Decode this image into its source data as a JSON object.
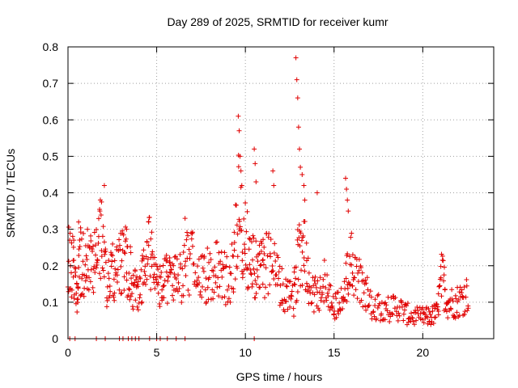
{
  "chart_data": {
    "type": "scatter",
    "title": "Day 289 of 2025, SRMTID for receiver kumr",
    "xlabel": "GPS time / hours",
    "ylabel": "SRMTID / TECUs",
    "xlim": [
      0,
      24
    ],
    "ylim": [
      0,
      0.8
    ],
    "x_ticks": [
      "0",
      "5",
      "10",
      "15",
      "20"
    ],
    "x_tick_values": [
      0,
      5,
      10,
      15,
      20
    ],
    "y_ticks": [
      "0",
      "0.1",
      "0.2",
      "0.3",
      "0.4",
      "0.5",
      "0.6",
      "0.7",
      "0.8"
    ],
    "y_tick_values": [
      0,
      0.1,
      0.2,
      0.3,
      0.4,
      0.5,
      0.6,
      0.7,
      0.8
    ],
    "grid": true,
    "marker": "+",
    "color": "#e00000",
    "trend": [
      [
        0.0,
        0.22
      ],
      [
        0.3,
        0.2
      ],
      [
        0.5,
        0.12
      ],
      [
        0.7,
        0.22
      ],
      [
        1.0,
        0.2
      ],
      [
        1.3,
        0.2
      ],
      [
        1.6,
        0.22
      ],
      [
        1.9,
        0.28
      ],
      [
        2.2,
        0.15
      ],
      [
        2.5,
        0.18
      ],
      [
        2.8,
        0.18
      ],
      [
        3.1,
        0.22
      ],
      [
        3.4,
        0.2
      ],
      [
        3.7,
        0.14
      ],
      [
        4.0,
        0.12
      ],
      [
        4.3,
        0.18
      ],
      [
        4.6,
        0.24
      ],
      [
        4.9,
        0.16
      ],
      [
        5.2,
        0.14
      ],
      [
        5.5,
        0.16
      ],
      [
        5.8,
        0.17
      ],
      [
        6.1,
        0.16
      ],
      [
        6.5,
        0.18
      ],
      [
        6.9,
        0.22
      ],
      [
        7.3,
        0.18
      ],
      [
        7.7,
        0.17
      ],
      [
        8.1,
        0.18
      ],
      [
        8.5,
        0.2
      ],
      [
        8.9,
        0.16
      ],
      [
        9.3,
        0.19
      ],
      [
        9.6,
        0.35
      ],
      [
        9.9,
        0.28
      ],
      [
        10.2,
        0.22
      ],
      [
        10.5,
        0.2
      ],
      [
        10.8,
        0.18
      ],
      [
        11.1,
        0.2
      ],
      [
        11.5,
        0.24
      ],
      [
        11.9,
        0.14
      ],
      [
        12.3,
        0.12
      ],
      [
        12.7,
        0.1
      ],
      [
        13.0,
        0.24
      ],
      [
        13.3,
        0.28
      ],
      [
        13.6,
        0.14
      ],
      [
        14.0,
        0.12
      ],
      [
        14.4,
        0.16
      ],
      [
        14.8,
        0.11
      ],
      [
        15.2,
        0.09
      ],
      [
        15.6,
        0.12
      ],
      [
        15.9,
        0.22
      ],
      [
        16.2,
        0.16
      ],
      [
        16.6,
        0.15
      ],
      [
        17.0,
        0.1
      ],
      [
        17.5,
        0.09
      ],
      [
        18.0,
        0.08
      ],
      [
        18.5,
        0.09
      ],
      [
        19.0,
        0.07
      ],
      [
        19.5,
        0.06
      ],
      [
        20.0,
        0.06
      ],
      [
        20.4,
        0.06
      ],
      [
        20.8,
        0.07
      ],
      [
        21.1,
        0.17
      ],
      [
        21.4,
        0.1
      ],
      [
        21.8,
        0.1
      ],
      [
        22.2,
        0.11
      ],
      [
        22.6,
        0.13
      ]
    ],
    "spikes": [
      [
        0.1,
        0.27
      ],
      [
        0.6,
        0.32
      ],
      [
        1.1,
        0.3
      ],
      [
        1.8,
        0.35
      ],
      [
        2.05,
        0.42
      ],
      [
        3.3,
        0.3
      ],
      [
        4.55,
        0.32
      ],
      [
        6.6,
        0.33
      ],
      [
        9.6,
        0.61
      ],
      [
        9.65,
        0.57
      ],
      [
        9.7,
        0.5
      ],
      [
        9.75,
        0.46
      ],
      [
        9.8,
        0.42
      ],
      [
        10.5,
        0.52
      ],
      [
        10.55,
        0.48
      ],
      [
        10.6,
        0.43
      ],
      [
        11.55,
        0.46
      ],
      [
        11.6,
        0.42
      ],
      [
        12.85,
        0.77
      ],
      [
        12.9,
        0.71
      ],
      [
        12.95,
        0.66
      ],
      [
        13.0,
        0.58
      ],
      [
        13.05,
        0.52
      ],
      [
        13.1,
        0.47
      ],
      [
        13.2,
        0.45
      ],
      [
        13.3,
        0.42
      ],
      [
        13.35,
        0.38
      ],
      [
        14.05,
        0.4
      ],
      [
        15.65,
        0.44
      ],
      [
        15.7,
        0.41
      ],
      [
        15.75,
        0.38
      ],
      [
        15.8,
        0.35
      ]
    ],
    "zero_points": [
      0.1,
      0.4,
      1.6,
      2.1,
      2.9,
      3.1,
      3.4,
      3.6,
      3.8,
      4.0,
      4.6,
      5.0,
      5.2,
      5.6,
      6.1,
      6.6,
      10.5
    ]
  }
}
